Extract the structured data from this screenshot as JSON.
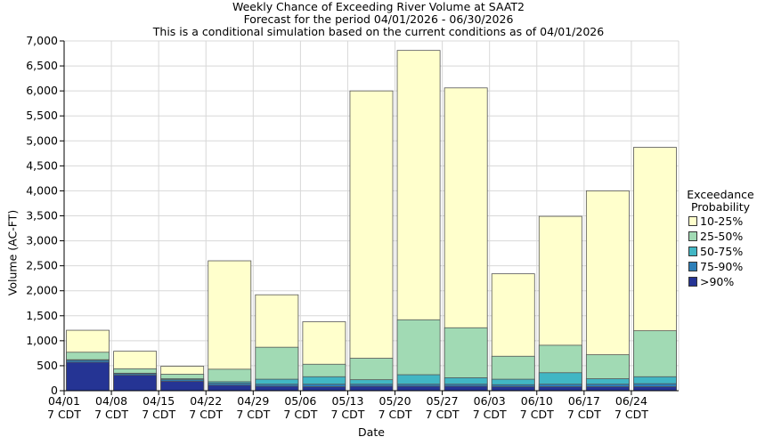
{
  "header": {
    "title": "Weekly Chance of Exceeding River Volume at SAAT2",
    "subtitle": "Forecast for the period 04/01/2026 - 06/30/2026",
    "note": "This is a conditional simulation based on the current conditions as of 04/01/2026"
  },
  "legend": {
    "title_line1": "Exceedance",
    "title_line2": "Probability",
    "items": [
      {
        "label": "10-25%",
        "color": "#ffffcc"
      },
      {
        "label": "25-50%",
        "color": "#a1dab4"
      },
      {
        "label": "50-75%",
        "color": "#41b6c4"
      },
      {
        "label": "75-90%",
        "color": "#2c7fb8"
      },
      {
        "label": ">90%",
        "color": "#253494"
      }
    ]
  },
  "chart_data": {
    "type": "bar",
    "stacked": true,
    "title": "Weekly Chance of Exceeding River Volume at SAAT2",
    "xlabel": "Date",
    "ylabel": "Volume (AC-FT)",
    "ylim": [
      0,
      7000
    ],
    "yticks": [
      0,
      500,
      1000,
      1500,
      2000,
      2500,
      3000,
      3500,
      4000,
      4500,
      5000,
      5500,
      6000,
      6500,
      7000
    ],
    "ytick_labels": [
      "0",
      "500",
      "1,000",
      "1,500",
      "2,000",
      "2,500",
      "3,000",
      "3,500",
      "4,000",
      "4,500",
      "5,000",
      "5,500",
      "6,000",
      "6,500",
      "7,000"
    ],
    "xtick_labels": [
      {
        "date": "04/01",
        "tz": "7 CDT"
      },
      {
        "date": "04/08",
        "tz": "7 CDT"
      },
      {
        "date": "04/15",
        "tz": "7 CDT"
      },
      {
        "date": "04/22",
        "tz": "7 CDT"
      },
      {
        "date": "04/29",
        "tz": "7 CDT"
      },
      {
        "date": "05/06",
        "tz": "7 CDT"
      },
      {
        "date": "05/13",
        "tz": "7 CDT"
      },
      {
        "date": "05/20",
        "tz": "7 CDT"
      },
      {
        "date": "05/27",
        "tz": "7 CDT"
      },
      {
        "date": "06/03",
        "tz": "7 CDT"
      },
      {
        "date": "06/10",
        "tz": "7 CDT"
      },
      {
        "date": "06/17",
        "tz": "7 CDT"
      },
      {
        "date": "06/24",
        "tz": "7 CDT"
      }
    ],
    "series_keys": [
      ">90%",
      "75-90%",
      "50-75%",
      "25-50%",
      "10-25%"
    ],
    "bars": [
      {
        "week": "04/01",
        "exceed": [
          570,
          610,
          620,
          770,
          1210
        ]
      },
      {
        "week": "04/08",
        "exceed": [
          310,
          340,
          350,
          440,
          790
        ]
      },
      {
        "week": "04/15",
        "exceed": [
          190,
          220,
          240,
          330,
          490
        ]
      },
      {
        "week": "04/22",
        "exceed": [
          110,
          150,
          180,
          430,
          2600
        ]
      },
      {
        "week": "04/29",
        "exceed": [
          90,
          130,
          230,
          870,
          1920
        ]
      },
      {
        "week": "05/06",
        "exceed": [
          80,
          130,
          280,
          530,
          1380
        ]
      },
      {
        "week": "05/13",
        "exceed": [
          90,
          130,
          220,
          650,
          6000
        ]
      },
      {
        "week": "05/20",
        "exceed": [
          90,
          130,
          320,
          1420,
          6810
        ]
      },
      {
        "week": "05/27",
        "exceed": [
          90,
          130,
          260,
          1260,
          6060
        ]
      },
      {
        "week": "06/03",
        "exceed": [
          80,
          120,
          230,
          690,
          2340
        ]
      },
      {
        "week": "06/10",
        "exceed": [
          80,
          130,
          360,
          910,
          3490
        ]
      },
      {
        "week": "06/17",
        "exceed": [
          80,
          130,
          240,
          720,
          4000
        ]
      },
      {
        "week": "06/24",
        "exceed": [
          80,
          140,
          280,
          1200,
          4870
        ]
      }
    ],
    "grid": true,
    "legend_position": "right"
  }
}
